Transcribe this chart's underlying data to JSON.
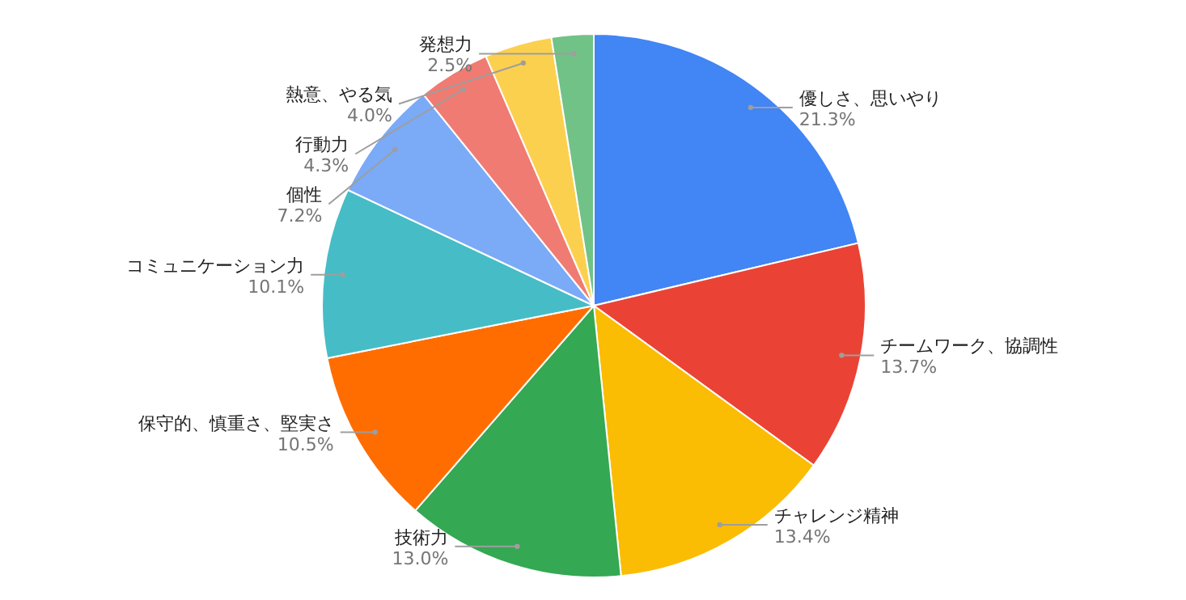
{
  "chart_data": {
    "type": "pie",
    "categories": [
      "優しさ、思いやり",
      "チームワーク、協調性",
      "チャレンジ精神",
      "技術力",
      "保守的、慎重さ、堅実さ",
      "コミュニケーション力",
      "個性",
      "行動力",
      "熱意、やる気",
      "発想力"
    ],
    "values": [
      21.3,
      13.7,
      13.4,
      13.0,
      10.5,
      10.1,
      7.2,
      4.3,
      4.0,
      2.5
    ],
    "value_labels": [
      "21.3%",
      "13.7%",
      "13.4%",
      "13.0%",
      "10.5%",
      "10.1%",
      "7.2%",
      "4.3%",
      "4.0%",
      "2.5%"
    ],
    "colors": [
      "#4285f4",
      "#ea4335",
      "#fbbc04",
      "#34a853",
      "#ff6d01",
      "#46bdc6",
      "#7baaf7",
      "#f07b72",
      "#fcd04f",
      "#71c287"
    ]
  }
}
